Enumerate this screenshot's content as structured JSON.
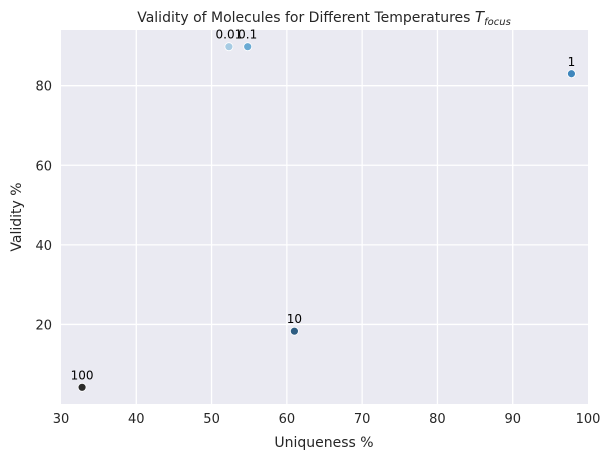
{
  "chart_data": {
    "type": "scatter",
    "title": "Validity of Molecules for Different Temperatures ",
    "title_math": "T",
    "title_math_sub": "focus",
    "xlabel": "Uniqueness %",
    "ylabel": "Validity %",
    "xlim": [
      30,
      100
    ],
    "ylim": [
      0,
      94
    ],
    "xticks": [
      "30",
      "40",
      "50",
      "60",
      "70",
      "80",
      "90",
      "100"
    ],
    "yticks": [
      "20",
      "40",
      "60",
      "80"
    ],
    "grid": true,
    "points": [
      {
        "label": "0.01",
        "x": 52.3,
        "y": 89.8,
        "color": "#a6cbe3"
      },
      {
        "label": "0.1",
        "x": 54.8,
        "y": 89.8,
        "color": "#6aaad3"
      },
      {
        "label": "1",
        "x": 97.8,
        "y": 83.0,
        "color": "#3f86bc"
      },
      {
        "label": "10",
        "x": 61.0,
        "y": 18.3,
        "color": "#2e5d82"
      },
      {
        "label": "100",
        "x": 32.8,
        "y": 4.2,
        "color": "#2a2a2a"
      }
    ],
    "colors": {
      "plot_background": "#eaeaf2",
      "grid": "#ffffff",
      "text": "#262626"
    }
  }
}
